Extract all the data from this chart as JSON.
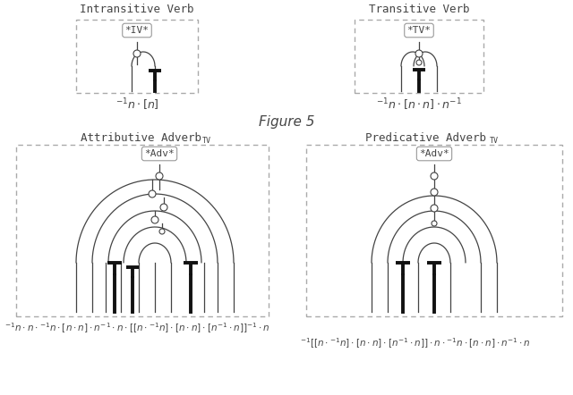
{
  "title": "Figure 5",
  "bg_color": "#ffffff",
  "top_left_title": "Intransitive Verb",
  "top_right_title": "Transitive Verb",
  "bottom_left_title": "Attributive Adverb",
  "bottom_right_title": "Predicative Adverb",
  "top_left_formula": "$^{-1}n \\cdot [n]$",
  "top_right_formula": "$^{-1}n \\cdot [n \\cdot n] \\cdot n^{-1}$",
  "bottom_left_formula": "$^{-1}n \\cdot n \\cdot {}^{-1}n \\cdot [n \\cdot n] \\cdot n^{-1} \\cdot n \\cdot [[n \\cdot {}^{-1}n] \\cdot [n \\cdot n] \\cdot [n^{-1} \\cdot n]]^{-1} \\cdot n$",
  "bottom_right_formula": "${}^{-1}[[n \\cdot {}^{-1}n] \\cdot [n \\cdot n] \\cdot [n^{-1} \\cdot n]] \\cdot n \\cdot {}^{-1}n \\cdot [n \\cdot n] \\cdot n^{-1} \\cdot n$"
}
